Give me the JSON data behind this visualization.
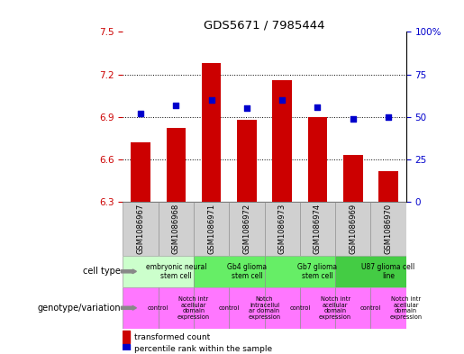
{
  "title": "GDS5671 / 7985444",
  "samples": [
    "GSM1086967",
    "GSM1086968",
    "GSM1086971",
    "GSM1086972",
    "GSM1086973",
    "GSM1086974",
    "GSM1086969",
    "GSM1086970"
  ],
  "transformed_count": [
    6.72,
    6.82,
    7.28,
    6.88,
    7.16,
    6.9,
    6.63,
    6.52
  ],
  "percentile_rank": [
    52,
    57,
    60,
    55,
    60,
    56,
    49,
    50
  ],
  "ylim_left": [
    6.3,
    7.5
  ],
  "ylim_right": [
    0,
    100
  ],
  "yticks_left": [
    6.3,
    6.6,
    6.9,
    7.2,
    7.5
  ],
  "yticks_right": [
    0,
    25,
    50,
    75,
    100
  ],
  "cell_types": [
    {
      "label": "embryonic neural\nstem cell",
      "color": "#ccffcc",
      "span": [
        0,
        2
      ]
    },
    {
      "label": "Gb4 glioma\nstem cell",
      "color": "#66ee66",
      "span": [
        2,
        4
      ]
    },
    {
      "label": "Gb7 glioma\nstem cell",
      "color": "#66ee66",
      "span": [
        4,
        6
      ]
    },
    {
      "label": "U87 glioma cell\nline",
      "color": "#44cc44",
      "span": [
        6,
        8
      ]
    }
  ],
  "genotypes": [
    {
      "label": "control",
      "color": "#ff77ff",
      "span": [
        0,
        1
      ]
    },
    {
      "label": "Notch intr\nacellular\ndomain\nexpression",
      "color": "#ff77ff",
      "span": [
        1,
        2
      ]
    },
    {
      "label": "control",
      "color": "#ff77ff",
      "span": [
        2,
        3
      ]
    },
    {
      "label": "Notch\nintracellul\nar domain\nexpression",
      "color": "#ff77ff",
      "span": [
        3,
        4
      ]
    },
    {
      "label": "control",
      "color": "#ff77ff",
      "span": [
        4,
        5
      ]
    },
    {
      "label": "Notch intr\nacellular\ndomain\nexpression",
      "color": "#ff77ff",
      "span": [
        5,
        6
      ]
    },
    {
      "label": "control",
      "color": "#ff77ff",
      "span": [
        6,
        7
      ]
    },
    {
      "label": "Notch intr\nacellular\ndomain\nexpression",
      "color": "#ff77ff",
      "span": [
        7,
        8
      ]
    }
  ],
  "bar_color": "#cc0000",
  "dot_color": "#0000cc",
  "bar_bottom": 6.3,
  "legend_red": "transformed count",
  "legend_blue": "percentile rank within the sample",
  "left_col_color": "#d0d0d0",
  "grid_lines": [
    6.6,
    6.9,
    7.2
  ],
  "cell_type_label": "cell type",
  "genotype_label": "genotype/variation"
}
